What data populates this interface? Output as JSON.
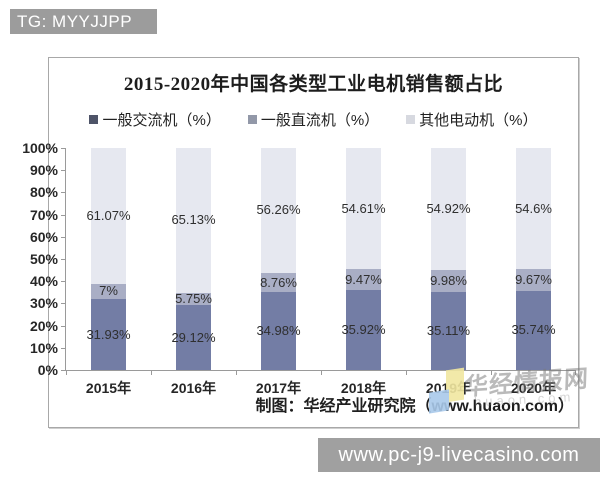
{
  "badge": {
    "text": "TG: MYYJJPP"
  },
  "chart": {
    "title": "2015-2020年中国各类型工业电机销售额占比",
    "legend": [
      {
        "label": "一般交流机（%）",
        "color": "#4e5468"
      },
      {
        "label": "一般直流机（%）",
        "color": "#9298a8"
      },
      {
        "label": "其他电动机（%）",
        "color": "#d7d9e0"
      }
    ],
    "source": "制图：华经产业研究院（www.huaon.com）",
    "watermark": {
      "text": "华经情报网",
      "subtext": "huaon.com"
    }
  },
  "chart_data": {
    "type": "bar",
    "stacked": true,
    "title": "2015-2020年中国各类型工业电机销售额占比",
    "categories": [
      "2015年",
      "2016年",
      "2017年",
      "2018年",
      "2019年",
      "2020年"
    ],
    "series": [
      {
        "name": "一般交流机（%）",
        "color": "#737da5",
        "values": [
          31.93,
          29.12,
          34.98,
          35.92,
          35.11,
          35.74
        ],
        "labels": [
          "31.93%",
          "29.12%",
          "34.98%",
          "35.92%",
          "35.11%",
          "35.74%"
        ]
      },
      {
        "name": "一般直流机（%）",
        "color": "#a9aec5",
        "values": [
          7,
          5.75,
          8.76,
          9.47,
          9.98,
          9.67
        ],
        "labels": [
          "7%",
          "5.75%",
          "8.76%",
          "9.47%",
          "9.98%",
          "9.67%"
        ]
      },
      {
        "name": "其他电动机（%）",
        "color": "#e6e8f0",
        "values": [
          61.07,
          65.13,
          56.26,
          54.61,
          54.92,
          54.6
        ],
        "labels": [
          "61.07%",
          "65.13%",
          "56.26%",
          "54.61%",
          "54.92%",
          "54.6%"
        ]
      }
    ],
    "ylim": [
      0,
      100
    ],
    "yticks": [
      "100%",
      "90%",
      "80%",
      "70%",
      "60%",
      "50%",
      "40%",
      "30%",
      "20%",
      "10%",
      "0%"
    ],
    "grid": false,
    "legend_position": "top"
  },
  "footer": {
    "watermark_bar": "www.pc-j9-livecasino.com"
  }
}
